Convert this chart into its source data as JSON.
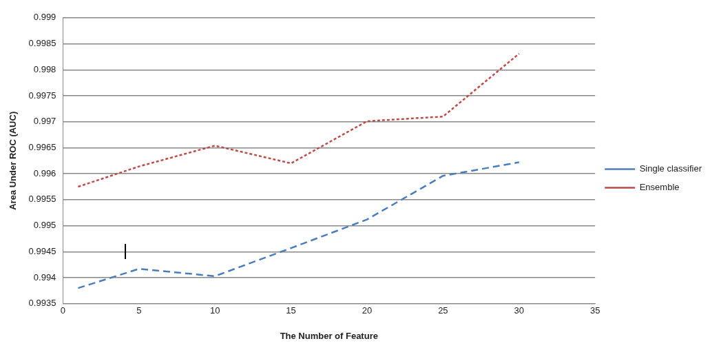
{
  "chart_data": {
    "type": "line",
    "xlabel": "The Number of Feature",
    "ylabel": "Area Under ROC (AUC)",
    "x": [
      1,
      5,
      10,
      15,
      20,
      25,
      30
    ],
    "series": [
      {
        "name": "Single classifier",
        "color": "#4a7ebb",
        "line_style": "dashed",
        "values": [
          0.9938,
          0.99417,
          0.99403,
          0.99457,
          0.99512,
          0.99596,
          0.99622
        ]
      },
      {
        "name": "Ensemble",
        "color": "#be4b48",
        "line_style": "dotted",
        "values": [
          0.99575,
          0.99614,
          0.99654,
          0.9962,
          0.99701,
          0.9971,
          0.99831
        ]
      }
    ],
    "xlim": [
      0,
      35
    ],
    "xticks": [
      0,
      5,
      10,
      15,
      20,
      25,
      30,
      35
    ],
    "ylim": [
      0.9935,
      0.999
    ],
    "yticks": [
      0.9935,
      0.994,
      0.9945,
      0.995,
      0.9955,
      0.996,
      0.9965,
      0.997,
      0.9975,
      0.998,
      0.9985,
      0.999
    ],
    "grid": "y",
    "legend": "right",
    "marker": "none"
  }
}
